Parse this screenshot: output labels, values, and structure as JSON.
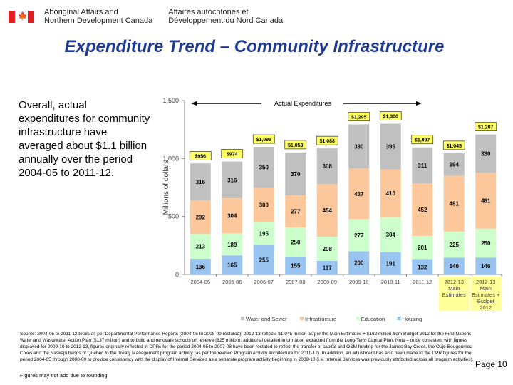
{
  "header": {
    "org_en_line1": "Aboriginal Affairs and",
    "org_en_line2": "Northern Development Canada",
    "org_fr_line1": "Affaires autochtones et",
    "org_fr_line2": "Développement du Nord Canada"
  },
  "title": "Expenditure Trend – Community Infrastructure",
  "intro": "Overall, actual expenditures for community infrastructure have averaged about $1.1 billion annually over the period 2004-05 to 2011-12.",
  "chart_data": {
    "type": "bar",
    "stacked": true,
    "ylabel": "Millions of dollars",
    "ylim": [
      0,
      1500
    ],
    "yticks": [
      "0",
      "500",
      "1,000",
      "1,500"
    ],
    "annotation": "Actual Expenditures",
    "categories": [
      "2004-05",
      "2005-06",
      "2006-07",
      "2007-08",
      "2008-09",
      "2009-10",
      "2010-11",
      "2011-12",
      "2012-13 Main Estimates",
      "2012-13 Main Estimates + Budget 2012"
    ],
    "highlighted_categories": [
      8,
      9
    ],
    "totals": [
      "$956",
      "$974",
      "$1,099",
      "$1,053",
      "$1,088",
      "$1,295",
      "$1,300",
      "$1,097",
      "$1,045",
      "$1,207"
    ],
    "series": [
      {
        "name": "Housing",
        "color": "#99c4f0",
        "values": [
          136,
          165,
          255,
          155,
          117,
          200,
          191,
          132,
          146,
          146
        ]
      },
      {
        "name": "Education",
        "color": "#ccffcc",
        "values": [
          213,
          189,
          195,
          250,
          208,
          277,
          304,
          201,
          225,
          250
        ]
      },
      {
        "name": "Infrastructure",
        "color": "#fcc79a",
        "values": [
          292,
          304,
          300,
          277,
          454,
          437,
          410,
          452,
          481,
          481
        ]
      },
      {
        "name": "Water and Sewer",
        "color": "#c0c0c0",
        "values": [
          316,
          316,
          350,
          370,
          308,
          380,
          395,
          311,
          194,
          330
        ]
      }
    ],
    "legend_order": [
      "Water and Sewer",
      "Infrastructure",
      "Education",
      "Housing"
    ],
    "legend": "bottom"
  },
  "source": "Source: 2004-05 to 2011-12 totals as per Departmental Performance Reports (2004-05 to 2008-09 restated); 2012-13 reflects $1,045 million as per the Main Estimates + $162 million from Budget 2012 for the First Nations Water and Wastewater Action Plan ($137 million) and to build and renovate schools on reserve ($25 million); additional detailed information extracted from the Long-Term Capital Plan. Note – to be consistent with figures displayed for 2009-10 to 2012-13, figures originally reflected in DPRs for the period 2004-05 to 2007-08 have been restated to reflect the transfer of capital and O&M funding for the James Bay Crees, the Oujé-Bougoumou Crees and the Naskapi bands of Quebec to the Treaty Management program activity (as per the revised Program Activity Architecture for 2011-12). In addition, an adjustment has also been made to the DPR figures for the period 2004-05 through 2008-09 to provide consistency with the display of Internal Services as a separate program activity beginning in 2009-10 (i.e. Internal Services was previously attributed across all program activities).",
  "footnote": "Figures may not add due to rounding",
  "page": "Page 10"
}
